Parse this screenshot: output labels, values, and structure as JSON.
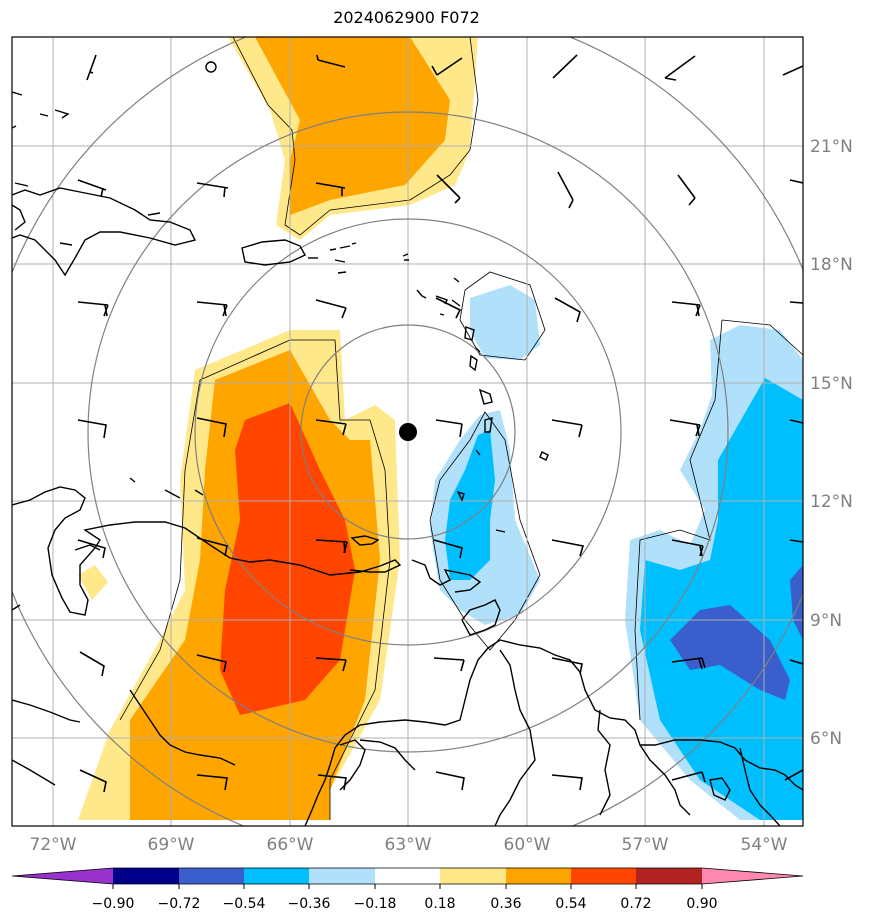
{
  "title": "2024062900 F072",
  "map": {
    "lon_labels": [
      "72°W",
      "69°W",
      "66°W",
      "63°W",
      "60°W",
      "57°W",
      "54°W"
    ],
    "lat_labels": [
      "21°N",
      "18°N",
      "15°N",
      "12°N",
      "9°N",
      "6°N"
    ],
    "center_marker": "storm-center-marker"
  },
  "colorbar": {
    "labels": [
      "−0.90",
      "−0.72",
      "−0.54",
      "−0.36",
      "−0.18",
      "0.18",
      "0.36",
      "0.54",
      "0.72",
      "0.90"
    ],
    "colors": [
      "#9932cc",
      "#00008b",
      "#3a5fcd",
      "#00bfff",
      "#b0e0fa",
      "#ffffff",
      "#ffe88a",
      "#ffa500",
      "#ff4500",
      "#b22222",
      "#ff88b0"
    ]
  }
}
